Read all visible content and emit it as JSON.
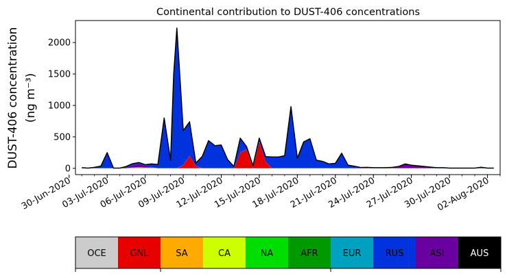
{
  "chart_data": {
    "type": "area",
    "title": "Continental contribution to DUST-406 concentrations",
    "ylabel_line1": "DUST-406 concentration",
    "ylabel_line2": "(ng m⁻³)",
    "xlabel": "",
    "ylim": [
      -100,
      2350
    ],
    "xlim": [
      "2020-06-30T12:00",
      "2020-08-03T00:00"
    ],
    "yticks": [
      0,
      500,
      1000,
      1500,
      2000
    ],
    "xticks": [
      {
        "date": "2020-06-30",
        "label": "30-Jun-2020"
      },
      {
        "date": "2020-07-03",
        "label": "03-Jul-2020"
      },
      {
        "date": "2020-07-06",
        "label": "06-Jul-2020"
      },
      {
        "date": "2020-07-09",
        "label": "09-Jul-2020"
      },
      {
        "date": "2020-07-12",
        "label": "12-Jul-2020"
      },
      {
        "date": "2020-07-15",
        "label": "15-Jul-2020"
      },
      {
        "date": "2020-07-18",
        "label": "18-Jul-2020"
      },
      {
        "date": "2020-07-21",
        "label": "21-Jul-2020"
      },
      {
        "date": "2020-07-24",
        "label": "24-Jul-2020"
      },
      {
        "date": "2020-07-27",
        "label": "27-Jul-2020"
      },
      {
        "date": "2020-07-30",
        "label": "30-Jul-2020"
      },
      {
        "date": "2020-08-02",
        "label": "02-Aug-2020"
      }
    ],
    "x": [
      "2020-07-01T00:00",
      "2020-07-01T12:00",
      "2020-07-02T00:00",
      "2020-07-02T12:00",
      "2020-07-03T00:00",
      "2020-07-03T12:00",
      "2020-07-04T00:00",
      "2020-07-04T12:00",
      "2020-07-05T00:00",
      "2020-07-05T12:00",
      "2020-07-06T00:00",
      "2020-07-06T12:00",
      "2020-07-07T00:00",
      "2020-07-07T12:00",
      "2020-07-08T00:00",
      "2020-07-08T06:00",
      "2020-07-08T12:00",
      "2020-07-09T00:00",
      "2020-07-09T12:00",
      "2020-07-10T00:00",
      "2020-07-10T12:00",
      "2020-07-11T00:00",
      "2020-07-11T12:00",
      "2020-07-12T00:00",
      "2020-07-12T12:00",
      "2020-07-13T00:00",
      "2020-07-13T12:00",
      "2020-07-14T00:00",
      "2020-07-14T12:00",
      "2020-07-15T00:00",
      "2020-07-15T12:00",
      "2020-07-16T00:00",
      "2020-07-16T12:00",
      "2020-07-17T00:00",
      "2020-07-17T12:00",
      "2020-07-18T00:00",
      "2020-07-18T12:00",
      "2020-07-19T00:00",
      "2020-07-19T12:00",
      "2020-07-20T00:00",
      "2020-07-20T12:00",
      "2020-07-21T00:00",
      "2020-07-21T12:00",
      "2020-07-22T00:00",
      "2020-07-22T12:00",
      "2020-07-23T00:00",
      "2020-07-23T12:00",
      "2020-07-24T00:00",
      "2020-07-24T12:00",
      "2020-07-25T00:00",
      "2020-07-25T12:00",
      "2020-07-26T00:00",
      "2020-07-26T12:00",
      "2020-07-27T00:00",
      "2020-07-27T12:00",
      "2020-07-28T00:00",
      "2020-07-28T12:00",
      "2020-07-29T00:00",
      "2020-07-29T12:00",
      "2020-07-30T00:00",
      "2020-07-30T12:00",
      "2020-07-31T00:00",
      "2020-07-31T12:00",
      "2020-08-01T00:00",
      "2020-08-01T12:00",
      "2020-08-02T00:00",
      "2020-08-02T12:00"
    ],
    "series": [
      {
        "name": "GNL",
        "color": "#e60000",
        "values": [
          0,
          0,
          0,
          0,
          0,
          0,
          0,
          0,
          0,
          0,
          0,
          0,
          0,
          0,
          0,
          0,
          0,
          50,
          200,
          30,
          0,
          0,
          0,
          0,
          0,
          0,
          250,
          300,
          10,
          420,
          100,
          0,
          0,
          0,
          0,
          0,
          0,
          0,
          0,
          0,
          0,
          0,
          0,
          0,
          0,
          0,
          0,
          0,
          0,
          0,
          0,
          0,
          0,
          0,
          0,
          0,
          0,
          0,
          0,
          0,
          0,
          0,
          0,
          0,
          0,
          0,
          0
        ]
      },
      {
        "name": "SA",
        "color": "#ffaa00",
        "values": [
          0,
          0,
          0,
          0,
          0,
          0,
          0,
          0,
          10,
          15,
          10,
          10,
          0,
          0,
          0,
          0,
          0,
          0,
          0,
          0,
          0,
          0,
          0,
          0,
          0,
          0,
          0,
          0,
          0,
          0,
          0,
          0,
          0,
          0,
          0,
          0,
          0,
          0,
          0,
          0,
          0,
          0,
          0,
          0,
          0,
          0,
          0,
          0,
          0,
          0,
          0,
          0,
          0,
          0,
          0,
          0,
          0,
          0,
          0,
          0,
          0,
          0,
          0,
          0,
          0,
          0,
          0
        ]
      },
      {
        "name": "EUR",
        "color": "#00a0c0",
        "values": [
          3,
          3,
          3,
          3,
          3,
          3,
          3,
          3,
          3,
          3,
          3,
          3,
          3,
          3,
          3,
          3,
          3,
          3,
          3,
          3,
          3,
          3,
          3,
          3,
          3,
          3,
          3,
          3,
          3,
          3,
          3,
          3,
          3,
          3,
          3,
          3,
          3,
          3,
          3,
          3,
          3,
          3,
          3,
          3,
          3,
          3,
          3,
          3,
          3,
          3,
          3,
          3,
          3,
          3,
          3,
          3,
          3,
          3,
          3,
          3,
          3,
          3,
          3,
          3,
          3,
          3,
          3
        ]
      },
      {
        "name": "ASI",
        "color": "#6a00a0",
        "values": [
          0,
          0,
          0,
          0,
          0,
          0,
          0,
          0,
          40,
          50,
          30,
          10,
          0,
          0,
          0,
          0,
          0,
          0,
          0,
          0,
          0,
          0,
          0,
          0,
          0,
          0,
          0,
          0,
          0,
          0,
          0,
          0,
          0,
          0,
          0,
          0,
          0,
          0,
          0,
          0,
          0,
          0,
          0,
          0,
          0,
          0,
          0,
          0,
          0,
          0,
          0,
          20,
          60,
          40,
          30,
          20,
          10,
          0,
          0,
          0,
          0,
          0,
          0,
          0,
          0,
          0,
          0
        ]
      },
      {
        "name": "RUS",
        "color": "#0033dd",
        "values": [
          7,
          0,
          12,
          32,
          247,
          0,
          0,
          27,
          20,
          25,
          15,
          47,
          57,
          797,
          127,
          1500,
          2227,
          547,
          537,
          50,
          187,
          437,
          357,
          367,
          137,
          27,
          227,
          42,
          30,
          57,
          82,
          177,
          177,
          197,
          977,
          157,
          417,
          467,
          127,
          107,
          67,
          77,
          237,
          47,
          30,
          10,
          12,
          7,
          7,
          7,
          12,
          7,
          7,
          7,
          7,
          7,
          7,
          7,
          7,
          0,
          0,
          0,
          0,
          0,
          15,
          0,
          0
        ]
      },
      {
        "name": "AUS",
        "color": "#000000",
        "values": [
          0,
          0,
          0,
          0,
          0,
          0,
          0,
          0,
          0,
          0,
          0,
          0,
          0,
          0,
          0,
          0,
          0,
          0,
          0,
          0,
          0,
          0,
          0,
          0,
          0,
          0,
          0,
          0,
          0,
          0,
          0,
          0,
          0,
          0,
          0,
          0,
          0,
          0,
          0,
          0,
          0,
          0,
          0,
          0,
          0,
          0,
          0,
          0,
          0,
          0,
          0,
          0,
          0,
          0,
          0,
          0,
          0,
          0,
          0,
          0,
          0,
          0,
          0,
          0,
          0,
          0,
          0
        ]
      }
    ],
    "colorbar": [
      {
        "label": "OCE",
        "color": "#cccccc"
      },
      {
        "label": "GNL",
        "color": "#e60000"
      },
      {
        "label": "SA",
        "color": "#ffaa00"
      },
      {
        "label": "CA",
        "color": "#ccff00"
      },
      {
        "label": "NA",
        "color": "#00dd00"
      },
      {
        "label": "AFR",
        "color": "#009900"
      },
      {
        "label": "EUR",
        "color": "#00a0c0"
      },
      {
        "label": "RUS",
        "color": "#0033dd"
      },
      {
        "label": "ASI",
        "color": "#6a00a0"
      },
      {
        "label": "AUS",
        "color": "#000000"
      }
    ],
    "grid": false,
    "legend": "bottom colorbar"
  }
}
